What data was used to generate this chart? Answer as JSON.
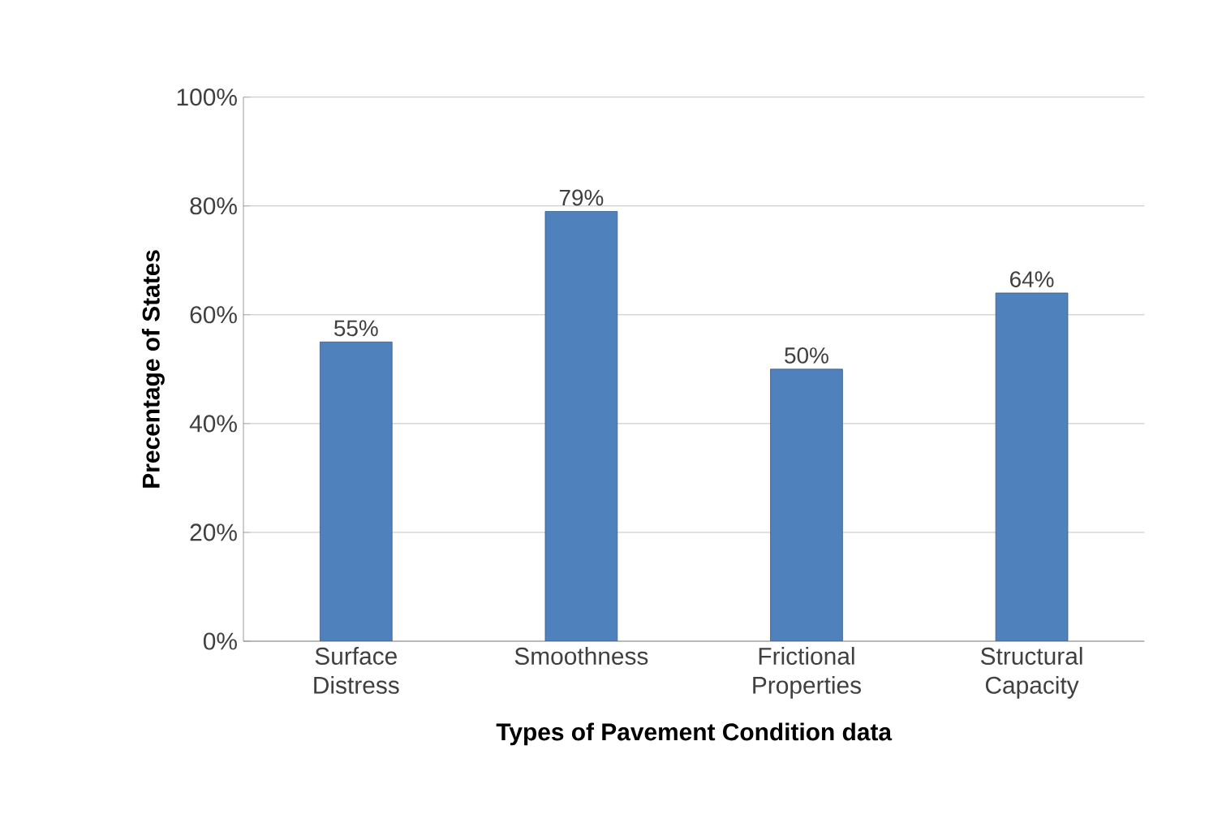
{
  "chart_data": {
    "type": "bar",
    "xlabel": "Types of Pavement Condition data",
    "ylabel": "Precentage of States",
    "categories": [
      "Surface Distress",
      "Smoothness",
      "Frictional Properties",
      "Structural Capacity"
    ],
    "values": [
      55,
      79,
      50,
      64
    ],
    "value_labels": [
      "55%",
      "79%",
      "50%",
      "64%"
    ],
    "color": "#4f81bd",
    "ylim": [
      0,
      100
    ],
    "yticks": [
      {
        "value": 0,
        "label": "0%"
      },
      {
        "value": 20,
        "label": "20%"
      },
      {
        "value": 40,
        "label": "40%"
      },
      {
        "value": 60,
        "label": "60%"
      },
      {
        "value": 80,
        "label": "80%"
      },
      {
        "value": 100,
        "label": "100%"
      }
    ],
    "grid": "y"
  }
}
